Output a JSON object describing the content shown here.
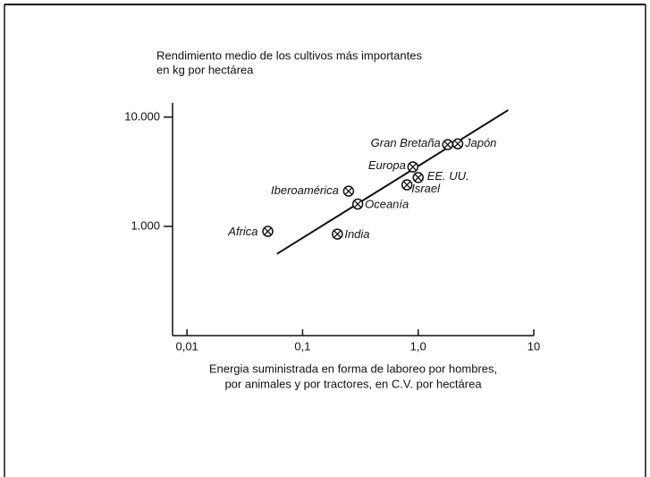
{
  "chart_data": {
    "type": "scatter",
    "title": "Rendimiento medio de los cultivos más importantes",
    "subtitle": "en kg por hectárea",
    "xlabel_lines": [
      "Energia suministrada en forma de laboreo por hombres,",
      "por animales y por tractores, en C.V. por hectárea"
    ],
    "xscale": "log",
    "yscale": "log",
    "xlim": [
      0.0075,
      10
    ],
    "ylim": [
      100,
      13500
    ],
    "xticks": [
      {
        "value": 0.01,
        "label": "0,01"
      },
      {
        "value": 0.1,
        "label": "0,1"
      },
      {
        "value": 1,
        "label": "1,0"
      },
      10
    ],
    "yticks": [
      {
        "value": 1000,
        "label": "1.000"
      },
      {
        "value": 10000,
        "label": "10.000"
      }
    ],
    "color": "#111111",
    "labels": [
      "Africa",
      "India",
      "Iberoamérica",
      "Oceanía",
      "Israel",
      "Europa",
      "EE. UU.",
      "Gran Bretaña",
      "Japón"
    ],
    "x": [
      0.05,
      0.2,
      0.25,
      0.3,
      0.8,
      0.9,
      1.0,
      1.8,
      2.2
    ],
    "values": [
      900,
      850,
      2100,
      1600,
      2400,
      3500,
      2800,
      5600,
      5700
    ],
    "trend_line": {
      "x": [
        0.06,
        6
      ],
      "values": [
        560,
        11600
      ]
    }
  }
}
